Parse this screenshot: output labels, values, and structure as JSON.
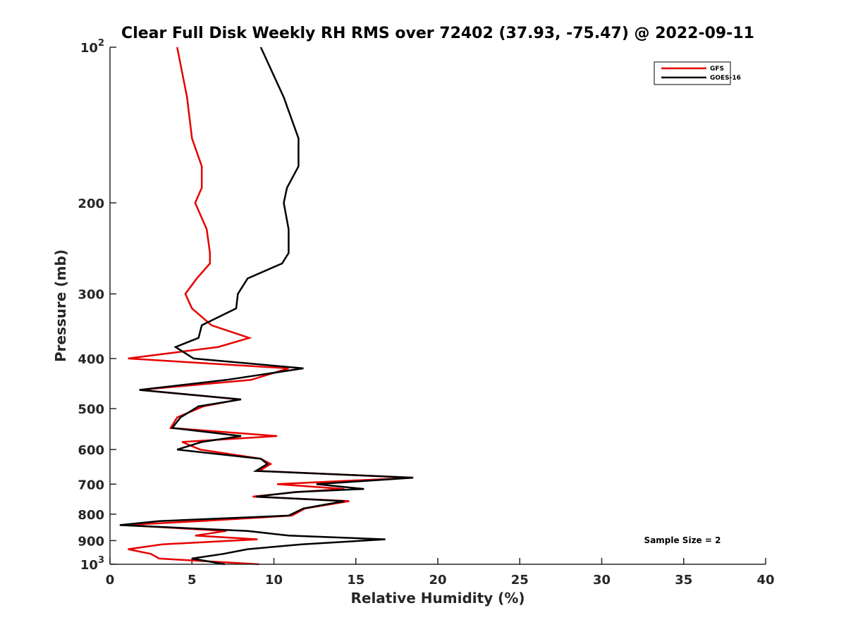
{
  "chart_data": {
    "type": "line",
    "title": "Clear Full Disk Weekly RH RMS over 72402 (37.93, -75.47) @ 2022-09-11",
    "xlabel": "Relative Humidity (%)",
    "ylabel": "Pressure (mb)",
    "xlim": [
      0,
      40
    ],
    "ylim": [
      100,
      1000
    ],
    "yscale": "log",
    "y_reversed": true,
    "x_ticks": [
      0,
      5,
      10,
      15,
      20,
      25,
      30,
      35,
      40
    ],
    "y_ticks": [
      100,
      200,
      300,
      400,
      500,
      600,
      700,
      800,
      900,
      1000
    ],
    "y_tick_labels": [
      {
        "base": "10",
        "exp": "2"
      },
      {
        "base": "200",
        "exp": ""
      },
      {
        "base": "300",
        "exp": ""
      },
      {
        "base": "400",
        "exp": ""
      },
      {
        "base": "500",
        "exp": ""
      },
      {
        "base": "600",
        "exp": ""
      },
      {
        "base": "700",
        "exp": ""
      },
      {
        "base": "800",
        "exp": ""
      },
      {
        "base": "900",
        "exp": ""
      },
      {
        "base": "10",
        "exp": "3"
      }
    ],
    "legend": {
      "location": "top-right",
      "entries": [
        "GFS",
        "GOES-16"
      ]
    },
    "annotation": "Sample Size = 2",
    "series": [
      {
        "name": "GFS",
        "color": "#e60000",
        "points": [
          [
            4.1,
            100
          ],
          [
            4.7,
            125
          ],
          [
            5.0,
            150
          ],
          [
            5.6,
            170
          ],
          [
            5.6,
            187
          ],
          [
            5.2,
            200
          ],
          [
            5.9,
            225
          ],
          [
            6.1,
            250
          ],
          [
            6.1,
            262
          ],
          [
            5.3,
            280
          ],
          [
            4.6,
            300
          ],
          [
            5.0,
            320
          ],
          [
            6.2,
            345
          ],
          [
            8.5,
            365
          ],
          [
            6.6,
            380
          ],
          [
            1.1,
            400
          ],
          [
            10.9,
            418
          ],
          [
            8.6,
            440
          ],
          [
            1.8,
            460
          ],
          [
            7.9,
            480
          ],
          [
            5.7,
            495
          ],
          [
            4.1,
            520
          ],
          [
            3.7,
            545
          ],
          [
            10.2,
            565
          ],
          [
            4.4,
            580
          ],
          [
            5.5,
            600
          ],
          [
            9.2,
            625
          ],
          [
            9.8,
            640
          ],
          [
            9.1,
            660
          ],
          [
            18.5,
            680
          ],
          [
            10.2,
            700
          ],
          [
            14.3,
            715
          ],
          [
            11.4,
            725
          ],
          [
            8.7,
            740
          ],
          [
            14.6,
            755
          ],
          [
            11.9,
            780
          ],
          [
            11.1,
            805
          ],
          [
            5.5,
            825
          ],
          [
            0.9,
            840
          ],
          [
            7.1,
            862
          ],
          [
            5.2,
            880
          ],
          [
            9.0,
            895
          ],
          [
            3.2,
            915
          ],
          [
            1.1,
            935
          ],
          [
            2.5,
            955
          ],
          [
            3.0,
            975
          ],
          [
            9.1,
            1000
          ]
        ]
      },
      {
        "name": "GOES-16",
        "color": "#000000",
        "points": [
          [
            9.2,
            100
          ],
          [
            10.6,
            125
          ],
          [
            11.5,
            150
          ],
          [
            11.5,
            170
          ],
          [
            10.8,
            187
          ],
          [
            10.6,
            200
          ],
          [
            10.9,
            225
          ],
          [
            10.9,
            250
          ],
          [
            10.5,
            262
          ],
          [
            8.4,
            280
          ],
          [
            7.8,
            300
          ],
          [
            7.7,
            320
          ],
          [
            5.6,
            345
          ],
          [
            5.4,
            365
          ],
          [
            4.0,
            380
          ],
          [
            5.1,
            400
          ],
          [
            11.8,
            418
          ],
          [
            7.1,
            440
          ],
          [
            1.8,
            460
          ],
          [
            8.0,
            480
          ],
          [
            5.4,
            495
          ],
          [
            4.3,
            520
          ],
          [
            3.8,
            545
          ],
          [
            8.0,
            565
          ],
          [
            5.6,
            580
          ],
          [
            4.1,
            600
          ],
          [
            9.2,
            625
          ],
          [
            9.6,
            640
          ],
          [
            8.9,
            660
          ],
          [
            18.5,
            680
          ],
          [
            12.6,
            700
          ],
          [
            15.5,
            715
          ],
          [
            11.3,
            725
          ],
          [
            8.9,
            740
          ],
          [
            14.3,
            755
          ],
          [
            11.8,
            780
          ],
          [
            10.9,
            805
          ],
          [
            3.0,
            825
          ],
          [
            0.6,
            840
          ],
          [
            8.4,
            862
          ],
          [
            10.9,
            880
          ],
          [
            16.8,
            895
          ],
          [
            11.7,
            915
          ],
          [
            8.4,
            935
          ],
          [
            6.9,
            955
          ],
          [
            5.0,
            975
          ],
          [
            7.0,
            1000
          ]
        ]
      }
    ]
  }
}
